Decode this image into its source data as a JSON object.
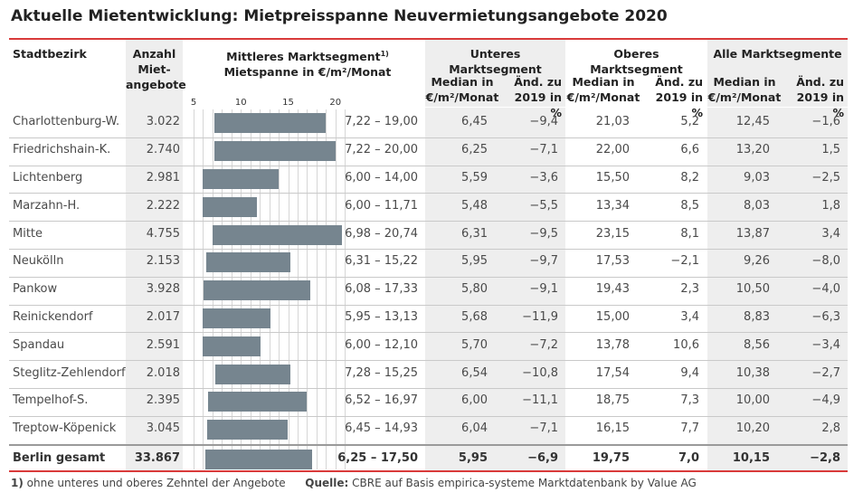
{
  "title": "Aktuelle Mietentwicklung: Mietpreisspanne Neuvermietungsangebote 2020",
  "headers": {
    "district": "Stadtbezirk",
    "count_line1": "Anzahl",
    "count_line2": "Miet-",
    "count_line3": "angebote",
    "mid_line1": "Mittleres Marktsegment",
    "mid_sup": "1)",
    "mid_line2": "Mietspanne in €/m²/Monat",
    "lower": "Unteres Marktsegment",
    "upper": "Oberes Marktsegment",
    "all": "Alle Marktsegmente",
    "median_line1": "Median in",
    "median_line2": "€/m²/Monat",
    "change_line1": "Änd. zu",
    "change_line2": "2019 in %"
  },
  "footnote": {
    "num": "1)",
    "text": "ohne unteres und oberes Zehntel der Angebote",
    "source_label": "Quelle:",
    "source_text": "CBRE auf Basis empirica-systeme Marktdatenbank by Value AG"
  },
  "chart_data": {
    "type": "table",
    "axis": {
      "ticks": [
        "5",
        "10",
        "15",
        "20"
      ],
      "range": [
        5,
        22
      ]
    },
    "rows": [
      {
        "name": "Charlottenburg-W.",
        "count": "3.022",
        "low": 7.22,
        "high": 19.0,
        "span": "7,22 – 19,00",
        "lower_median": "6,45",
        "lower_change": "−9,4",
        "upper_median": "21,03",
        "upper_change": "5,2",
        "all_median": "12,45",
        "all_change": "−1,6"
      },
      {
        "name": "Friedrichshain-K.",
        "count": "2.740",
        "low": 7.22,
        "high": 20.0,
        "span": "7,22 – 20,00",
        "lower_median": "6,25",
        "lower_change": "−7,1",
        "upper_median": "22,00",
        "upper_change": "6,6",
        "all_median": "13,20",
        "all_change": "1,5"
      },
      {
        "name": "Lichtenberg",
        "count": "2.981",
        "low": 6.0,
        "high": 14.0,
        "span": "6,00 – 14,00",
        "lower_median": "5,59",
        "lower_change": "−3,6",
        "upper_median": "15,50",
        "upper_change": "8,2",
        "all_median": "9,03",
        "all_change": "−2,5"
      },
      {
        "name": "Marzahn-H.",
        "count": "2.222",
        "low": 6.0,
        "high": 11.71,
        "span": "6,00 – 11,71",
        "lower_median": "5,48",
        "lower_change": "−5,5",
        "upper_median": "13,34",
        "upper_change": "8,5",
        "all_median": "8,03",
        "all_change": "1,8"
      },
      {
        "name": "Mitte",
        "count": "4.755",
        "low": 6.98,
        "high": 20.74,
        "span": "6,98 – 20,74",
        "lower_median": "6,31",
        "lower_change": "−9,5",
        "upper_median": "23,15",
        "upper_change": "8,1",
        "all_median": "13,87",
        "all_change": "3,4"
      },
      {
        "name": "Neukölln",
        "count": "2.153",
        "low": 6.31,
        "high": 15.22,
        "span": "6,31 – 15,22",
        "lower_median": "5,95",
        "lower_change": "−9,7",
        "upper_median": "17,53",
        "upper_change": "−2,1",
        "all_median": "9,26",
        "all_change": "−8,0"
      },
      {
        "name": "Pankow",
        "count": "3.928",
        "low": 6.08,
        "high": 17.33,
        "span": "6,08 – 17,33",
        "lower_median": "5,80",
        "lower_change": "−9,1",
        "upper_median": "19,43",
        "upper_change": "2,3",
        "all_median": "10,50",
        "all_change": "−4,0"
      },
      {
        "name": "Reinickendorf",
        "count": "2.017",
        "low": 5.95,
        "high": 13.13,
        "span": "5,95 – 13,13",
        "lower_median": "5,68",
        "lower_change": "−11,9",
        "upper_median": "15,00",
        "upper_change": "3,4",
        "all_median": "8,83",
        "all_change": "−6,3"
      },
      {
        "name": "Spandau",
        "count": "2.591",
        "low": 6.0,
        "high": 12.1,
        "span": "6,00 – 12,10",
        "lower_median": "5,70",
        "lower_change": "−7,2",
        "upper_median": "13,78",
        "upper_change": "10,6",
        "all_median": "8,56",
        "all_change": "−3,4"
      },
      {
        "name": "Steglitz-Zehlendorf",
        "count": "2.018",
        "low": 7.28,
        "high": 15.25,
        "span": "7,28 – 15,25",
        "lower_median": "6,54",
        "lower_change": "−10,8",
        "upper_median": "17,54",
        "upper_change": "9,4",
        "all_median": "10,38",
        "all_change": "−2,7"
      },
      {
        "name": "Tempelhof-S.",
        "count": "2.395",
        "low": 6.52,
        "high": 16.97,
        "span": "6,52 – 16,97",
        "lower_median": "6,00",
        "lower_change": "−11,1",
        "upper_median": "18,75",
        "upper_change": "7,3",
        "all_median": "10,00",
        "all_change": "−4,9"
      },
      {
        "name": "Treptow-Köpenick",
        "count": "3.045",
        "low": 6.45,
        "high": 14.93,
        "span": "6,45 – 14,93",
        "lower_median": "6,04",
        "lower_change": "−7,1",
        "upper_median": "16,15",
        "upper_change": "7,7",
        "all_median": "10,20",
        "all_change": "2,8"
      },
      {
        "name": "Berlin gesamt",
        "count": "33.867",
        "low": 6.25,
        "high": 17.5,
        "span": "6,25 – 17,50",
        "lower_median": "5,95",
        "lower_change": "−6,9",
        "upper_median": "19,75",
        "upper_change": "7,0",
        "all_median": "10,15",
        "all_change": "−2,8",
        "total": true
      }
    ]
  }
}
